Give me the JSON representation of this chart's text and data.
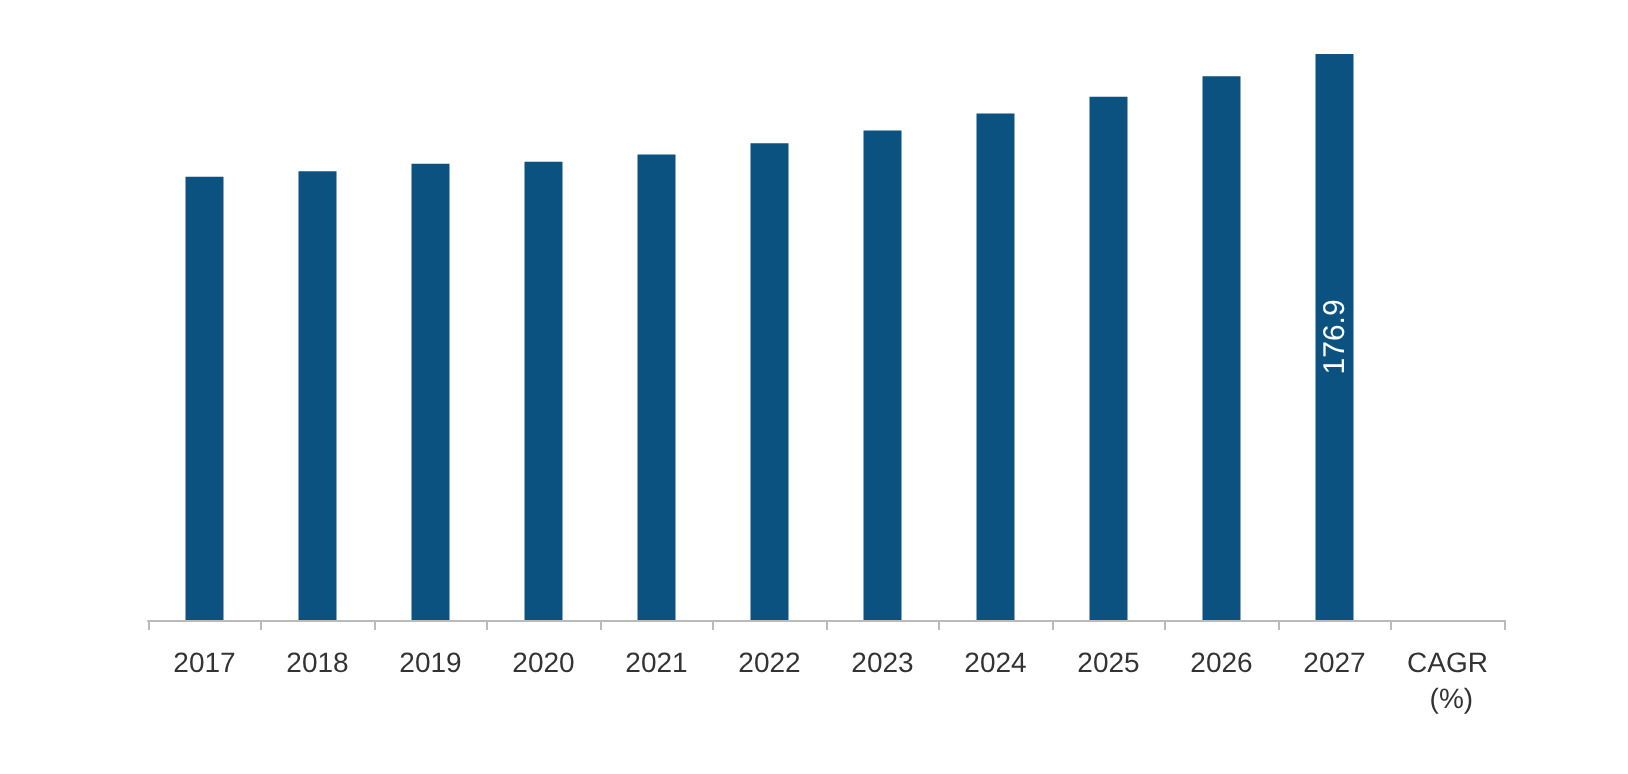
{
  "chart_data": {
    "type": "bar",
    "categories": [
      "2017",
      "2018",
      "2019",
      "2020",
      "2021",
      "2022",
      "2023",
      "2024",
      "2025",
      "2026",
      "2027",
      "CAGR (%)"
    ],
    "values": [
      138.5,
      140.2,
      142.6,
      143.2,
      145.5,
      149.0,
      153.0,
      158.3,
      163.5,
      169.9,
      176.9,
      null
    ],
    "value_labels": [
      null,
      null,
      null,
      null,
      null,
      null,
      null,
      null,
      null,
      null,
      "176.9",
      null
    ],
    "color": "#0b5281",
    "grid": false
  }
}
